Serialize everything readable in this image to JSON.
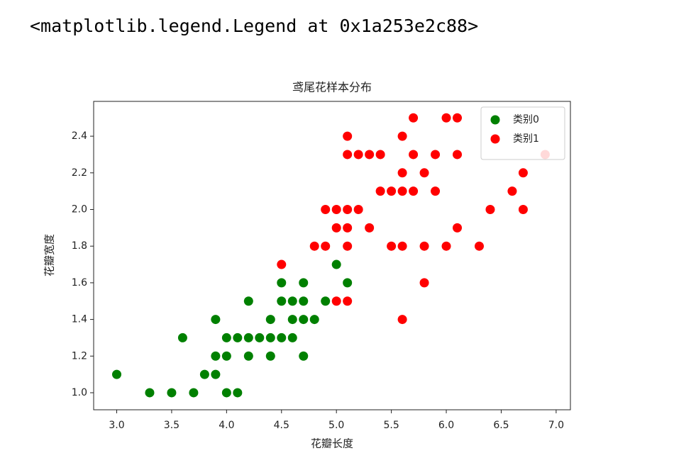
{
  "output_text": "<matplotlib.legend.Legend at 0x1a253e2c88>",
  "chart_data": {
    "type": "scatter",
    "title": "鸢尾花样本分布",
    "x_label": "花瓣长度",
    "y_label": "花瓣宽度",
    "xlim": [
      2.79,
      7.13
    ],
    "ylim": [
      0.907,
      2.59
    ],
    "xticks": [
      {
        "value": 3,
        "label": "3.0"
      },
      {
        "value": 3.5,
        "label": "3.5"
      },
      {
        "value": 4,
        "label": "4.0"
      },
      {
        "value": 4.5,
        "label": "4.5"
      },
      {
        "value": 5,
        "label": "5.0"
      },
      {
        "value": 5.5,
        "label": "5.5"
      },
      {
        "value": 6,
        "label": "6.0"
      },
      {
        "value": 6.5,
        "label": "6.5"
      },
      {
        "value": 7,
        "label": "7.0"
      }
    ],
    "yticks": [
      {
        "value": 1,
        "label": "1.0"
      },
      {
        "value": 1.2,
        "label": "1.2"
      },
      {
        "value": 1.4,
        "label": "1.4"
      },
      {
        "value": 1.6,
        "label": "1.6"
      },
      {
        "value": 1.8,
        "label": "1.8"
      },
      {
        "value": 2,
        "label": "2.0"
      },
      {
        "value": 2.2,
        "label": "2.2"
      },
      {
        "value": 2.4,
        "label": "2.4"
      }
    ],
    "grid": false,
    "legend": "upper right",
    "series": [
      {
        "name": "类别0",
        "color": "#008000",
        "x": [
          3.0,
          3.3,
          3.5,
          3.6,
          3.7,
          3.8,
          3.9,
          3.9,
          3.9,
          4.0,
          4.0,
          4.0,
          4.1,
          4.1,
          4.2,
          4.2,
          4.2,
          4.3,
          4.4,
          4.4,
          4.4,
          4.5,
          4.5,
          4.5,
          4.6,
          4.6,
          4.6,
          4.7,
          4.7,
          4.7,
          4.7,
          4.8,
          4.9,
          5.0,
          5.1
        ],
        "values": [
          1.1,
          1.0,
          1.0,
          1.3,
          1.0,
          1.1,
          1.1,
          1.2,
          1.4,
          1.0,
          1.2,
          1.3,
          1.0,
          1.3,
          1.2,
          1.3,
          1.5,
          1.3,
          1.2,
          1.3,
          1.4,
          1.3,
          1.5,
          1.6,
          1.3,
          1.4,
          1.5,
          1.2,
          1.4,
          1.5,
          1.6,
          1.4,
          1.5,
          1.7,
          1.6
        ]
      },
      {
        "name": "类别1",
        "color": "#ff0000",
        "x": [
          4.5,
          4.8,
          4.9,
          4.9,
          5.0,
          5.0,
          5.0,
          5.1,
          5.1,
          5.1,
          5.1,
          5.1,
          5.1,
          5.2,
          5.2,
          5.3,
          5.3,
          5.4,
          5.4,
          5.5,
          5.5,
          5.6,
          5.6,
          5.6,
          5.6,
          5.6,
          5.7,
          5.7,
          5.7,
          5.8,
          5.8,
          5.8,
          5.9,
          5.9,
          6.0,
          6.0,
          6.1,
          6.1,
          6.1,
          6.3,
          6.4,
          6.6,
          6.7,
          6.7,
          6.9
        ],
        "values": [
          1.7,
          1.8,
          1.8,
          2.0,
          1.5,
          1.9,
          2.0,
          1.5,
          1.8,
          1.9,
          2.0,
          2.3,
          2.4,
          2.0,
          2.3,
          1.9,
          2.3,
          2.1,
          2.3,
          1.8,
          2.1,
          1.4,
          1.8,
          2.1,
          2.2,
          2.4,
          2.1,
          2.3,
          2.5,
          1.6,
          1.8,
          2.2,
          2.1,
          2.3,
          1.8,
          2.5,
          1.9,
          2.3,
          2.5,
          1.8,
          2.0,
          2.1,
          2.0,
          2.2,
          2.3
        ]
      }
    ]
  }
}
